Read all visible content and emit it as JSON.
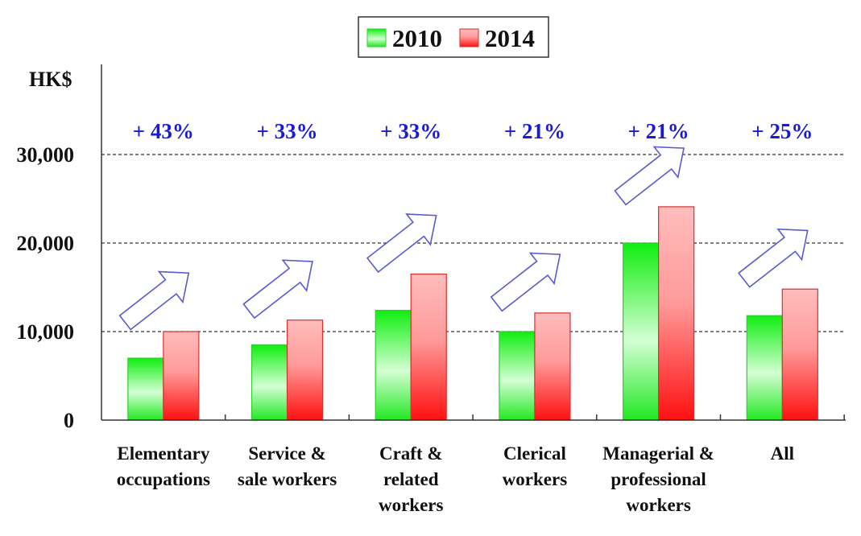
{
  "chart_data": {
    "type": "bar",
    "title": "",
    "xlabel": "",
    "ylabel": "HK$",
    "ylim": [
      0,
      30000
    ],
    "yticks": [
      0,
      10000,
      20000,
      30000
    ],
    "ytick_labels": [
      "0",
      "10,000",
      "20,000",
      "30,000"
    ],
    "grid": "horizontal-dashed",
    "legend_position": "top-center",
    "categories": [
      [
        "Elementary",
        "occupations"
      ],
      [
        "Service &",
        "sale workers"
      ],
      [
        "Craft &",
        "related",
        "workers"
      ],
      [
        "Clerical",
        "workers"
      ],
      [
        "Managerial &",
        "professional",
        "workers"
      ],
      [
        "All"
      ]
    ],
    "series": [
      {
        "name": "2010",
        "color": "#22ee22",
        "values": [
          7000,
          8500,
          12400,
          10000,
          20000,
          11800
        ]
      },
      {
        "name": "2014",
        "color": "#ff2222",
        "values": [
          10000,
          11300,
          16500,
          12100,
          24100,
          14800
        ]
      }
    ],
    "annotations": [
      "+ 43%",
      "+ 33%",
      "+ 33%",
      "+ 21%",
      "+ 21%",
      "+ 25%"
    ],
    "annotation_color": "#1a1ad6",
    "arrow_color": "#5a5ad0"
  }
}
